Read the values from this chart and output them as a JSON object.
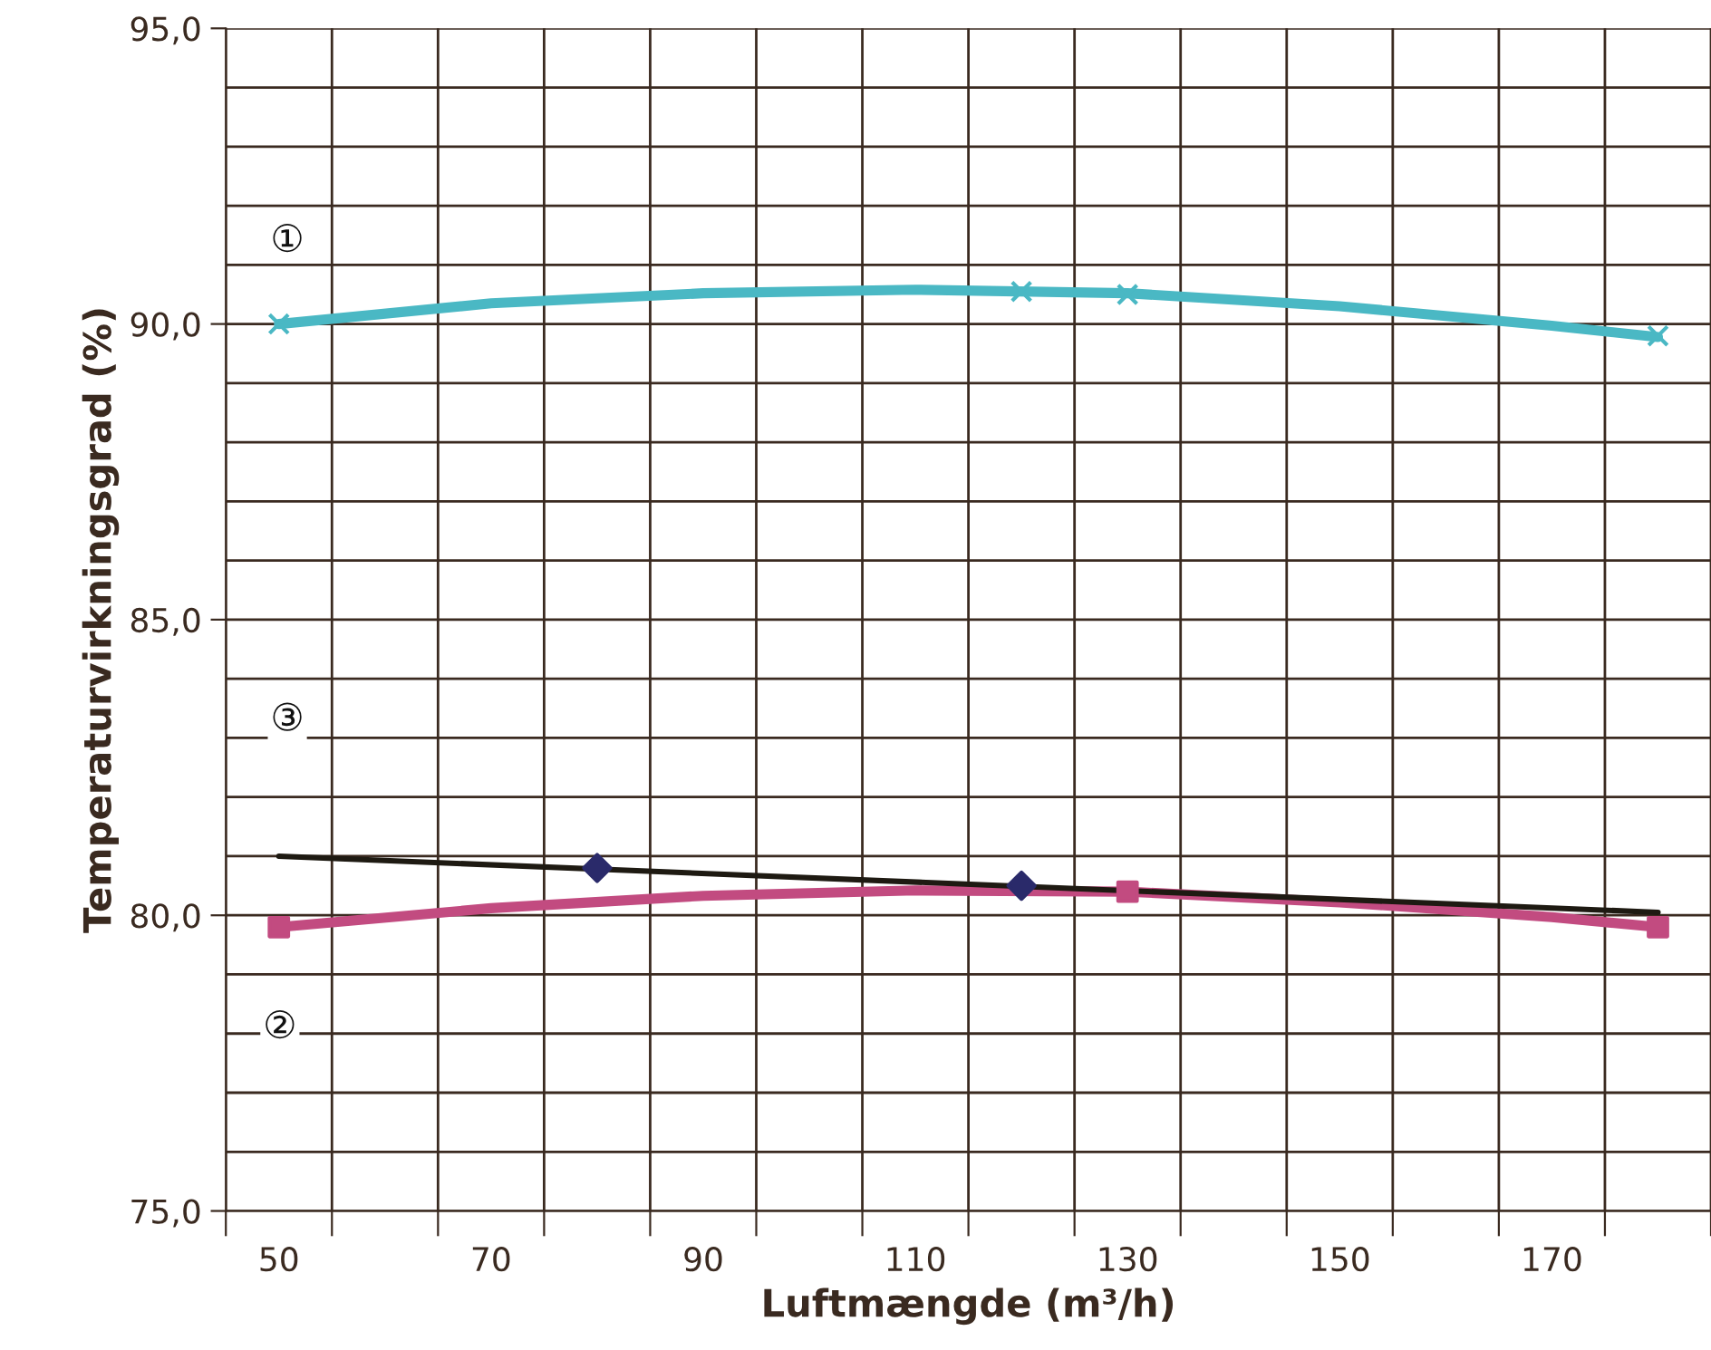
{
  "chart_data": {
    "type": "line",
    "xlabel": "Luftmængde (m³/h)",
    "ylabel": "Temperaturvirkningsgrad (%)",
    "xlim": [
      45,
      185
    ],
    "xticks": [
      {
        "value": 45,
        "label": null
      },
      {
        "value": 50,
        "label": "50"
      },
      {
        "value": 55,
        "label": null
      },
      {
        "value": 65,
        "label": null
      },
      {
        "value": 70,
        "label": "70"
      },
      {
        "value": 75,
        "label": null
      },
      {
        "value": 85,
        "label": null
      },
      {
        "value": 90,
        "label": "90"
      },
      {
        "value": 95,
        "label": null
      },
      {
        "value": 105,
        "label": null
      },
      {
        "value": 110,
        "label": "110"
      },
      {
        "value": 115,
        "label": null
      },
      {
        "value": 125,
        "label": null
      },
      {
        "value": 130,
        "label": "130"
      },
      {
        "value": 135,
        "label": null
      },
      {
        "value": 145,
        "label": null
      },
      {
        "value": 150,
        "label": "150"
      },
      {
        "value": 155,
        "label": null
      },
      {
        "value": 165,
        "label": null
      },
      {
        "value": 170,
        "label": "170"
      },
      {
        "value": 175,
        "label": null
      },
      {
        "value": 185,
        "label": null
      }
    ],
    "ylim": [
      75,
      95
    ],
    "yticks": [
      {
        "value": 75,
        "label": "75,0"
      },
      {
        "value": 76,
        "label": null
      },
      {
        "value": 77,
        "label": null
      },
      {
        "value": 78,
        "label": null
      },
      {
        "value": 79,
        "label": null
      },
      {
        "value": 80,
        "label": "80,0"
      },
      {
        "value": 81,
        "label": null
      },
      {
        "value": 82,
        "label": null
      },
      {
        "value": 83,
        "label": null
      },
      {
        "value": 84,
        "label": null
      },
      {
        "value": 85,
        "label": "85,0"
      },
      {
        "value": 86,
        "label": null
      },
      {
        "value": 87,
        "label": null
      },
      {
        "value": 88,
        "label": null
      },
      {
        "value": 89,
        "label": null
      },
      {
        "value": 90,
        "label": "90,0"
      },
      {
        "value": 91,
        "label": null
      },
      {
        "value": 92,
        "label": null
      },
      {
        "value": 93,
        "label": null
      },
      {
        "value": 94,
        "label": null
      },
      {
        "value": 95,
        "label": "95,0"
      }
    ],
    "grid": true,
    "legend": false,
    "series": [
      {
        "color": "#4ab8c4",
        "marker": "none",
        "x": [
          50,
          70,
          90,
          110,
          130,
          150,
          170,
          180
        ],
        "values": [
          90.0,
          90.35,
          90.52,
          90.58,
          90.52,
          90.3,
          89.97,
          89.78
        ]
      },
      {
        "type": "scatter",
        "color": "#4ab8c4",
        "marker": "cross",
        "x": [
          50,
          120,
          130,
          180
        ],
        "values": [
          90.0,
          90.55,
          90.5,
          89.8
        ]
      },
      {
        "color": "#c24b80",
        "marker": "none",
        "x": [
          50,
          70,
          90,
          110,
          130,
          150,
          170,
          180
        ],
        "values": [
          79.8,
          80.12,
          80.33,
          80.42,
          80.4,
          80.22,
          79.97,
          79.8
        ]
      },
      {
        "type": "scatter",
        "color": "#c24b80",
        "marker": "square",
        "x": [
          50,
          130,
          180
        ],
        "values": [
          79.8,
          80.4,
          79.8
        ]
      },
      {
        "color": "#1e1a12",
        "marker": "none",
        "x": [
          50,
          180
        ],
        "values": [
          81.0,
          80.05
        ]
      },
      {
        "type": "scatter",
        "color": "#2a2a6a",
        "marker": "diamond",
        "x": [
          80,
          120
        ],
        "values": [
          80.8,
          80.5
        ]
      }
    ],
    "annotations": [
      "①",
      "③",
      "②"
    ]
  }
}
